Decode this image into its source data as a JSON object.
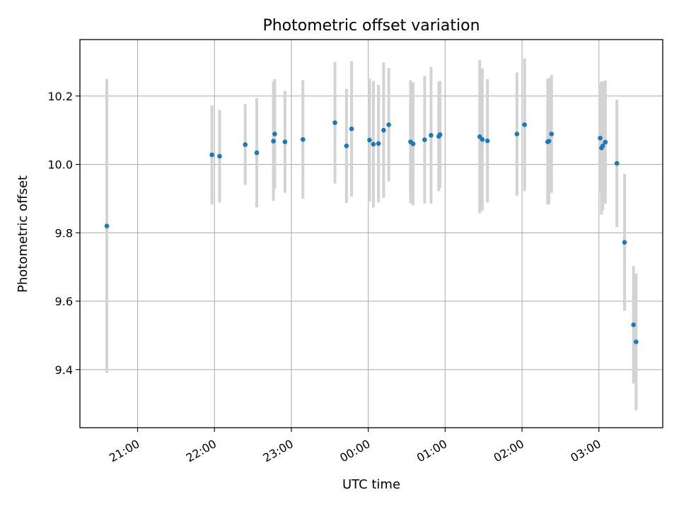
{
  "chart_data": {
    "type": "scatter",
    "title": "Photometric offset variation",
    "xlabel": "UTC time",
    "ylabel": "Photometric offset",
    "x_axis_kind": "time",
    "x_tick_labels": [
      "21:00",
      "22:00",
      "23:00",
      "00:00",
      "01:00",
      "02:00",
      "03:00"
    ],
    "x_tick_hours": [
      21,
      22,
      23,
      24,
      25,
      26,
      27
    ],
    "xlim_hours": [
      20.25,
      27.83
    ],
    "y_ticks": [
      9.4,
      9.6,
      9.8,
      10.0,
      10.2
    ],
    "y_tick_labels": [
      "9.4",
      "9.6",
      "9.8",
      "10.0",
      "10.2"
    ],
    "ylim": [
      9.23,
      10.365
    ],
    "grid": true,
    "point_color": "#1f77b4",
    "errorbar_color": "#d3d3d3",
    "series": [
      {
        "points": [
          {
            "t": "20:36",
            "y": 9.82,
            "err": 0.43
          },
          {
            "t": "21:58",
            "y": 10.028,
            "err": 0.145
          },
          {
            "t": "22:04",
            "y": 10.024,
            "err": 0.135
          },
          {
            "t": "22:24",
            "y": 10.058,
            "err": 0.118
          },
          {
            "t": "22:33",
            "y": 10.034,
            "err": 0.16
          },
          {
            "t": "22:46",
            "y": 10.068,
            "err": 0.175
          },
          {
            "t": "22:47",
            "y": 10.089,
            "err": 0.16
          },
          {
            "t": "22:55",
            "y": 10.066,
            "err": 0.149
          },
          {
            "t": "23:09",
            "y": 10.073,
            "err": 0.173
          },
          {
            "t": "23:34",
            "y": 10.122,
            "err": 0.178
          },
          {
            "t": "23:43",
            "y": 10.054,
            "err": 0.167
          },
          {
            "t": "23:47",
            "y": 10.104,
            "err": 0.198
          },
          {
            "t": "00:01",
            "y": 10.071,
            "err": 0.18
          },
          {
            "t": "00:04",
            "y": 10.059,
            "err": 0.185
          },
          {
            "t": "00:08",
            "y": 10.061,
            "err": 0.172
          },
          {
            "t": "00:12",
            "y": 10.1,
            "err": 0.198
          },
          {
            "t": "00:16",
            "y": 10.116,
            "err": 0.166
          },
          {
            "t": "00:33",
            "y": 10.066,
            "err": 0.18
          },
          {
            "t": "00:35",
            "y": 10.06,
            "err": 0.18
          },
          {
            "t": "00:44",
            "y": 10.072,
            "err": 0.187
          },
          {
            "t": "00:49",
            "y": 10.085,
            "err": 0.2
          },
          {
            "t": "00:55",
            "y": 10.082,
            "err": 0.16
          },
          {
            "t": "00:56",
            "y": 10.087,
            "err": 0.157
          },
          {
            "t": "01:27",
            "y": 10.081,
            "err": 0.224
          },
          {
            "t": "01:29",
            "y": 10.073,
            "err": 0.208
          },
          {
            "t": "01:33",
            "y": 10.069,
            "err": 0.18
          },
          {
            "t": "01:56",
            "y": 10.089,
            "err": 0.18
          },
          {
            "t": "02:02",
            "y": 10.116,
            "err": 0.194
          },
          {
            "t": "02:20",
            "y": 10.066,
            "err": 0.184
          },
          {
            "t": "02:21",
            "y": 10.068,
            "err": 0.184
          },
          {
            "t": "02:23",
            "y": 10.089,
            "err": 0.172
          },
          {
            "t": "03:01",
            "y": 10.077,
            "err": 0.16
          },
          {
            "t": "03:02",
            "y": 10.048,
            "err": 0.195
          },
          {
            "t": "03:03",
            "y": 10.054,
            "err": 0.188
          },
          {
            "t": "03:05",
            "y": 10.065,
            "err": 0.18
          },
          {
            "t": "03:14",
            "y": 10.003,
            "err": 0.186
          },
          {
            "t": "03:20",
            "y": 9.772,
            "err": 0.2
          },
          {
            "t": "03:27",
            "y": 9.531,
            "err": 0.172
          },
          {
            "t": "03:29",
            "y": 9.481,
            "err": 0.2
          }
        ]
      }
    ]
  }
}
